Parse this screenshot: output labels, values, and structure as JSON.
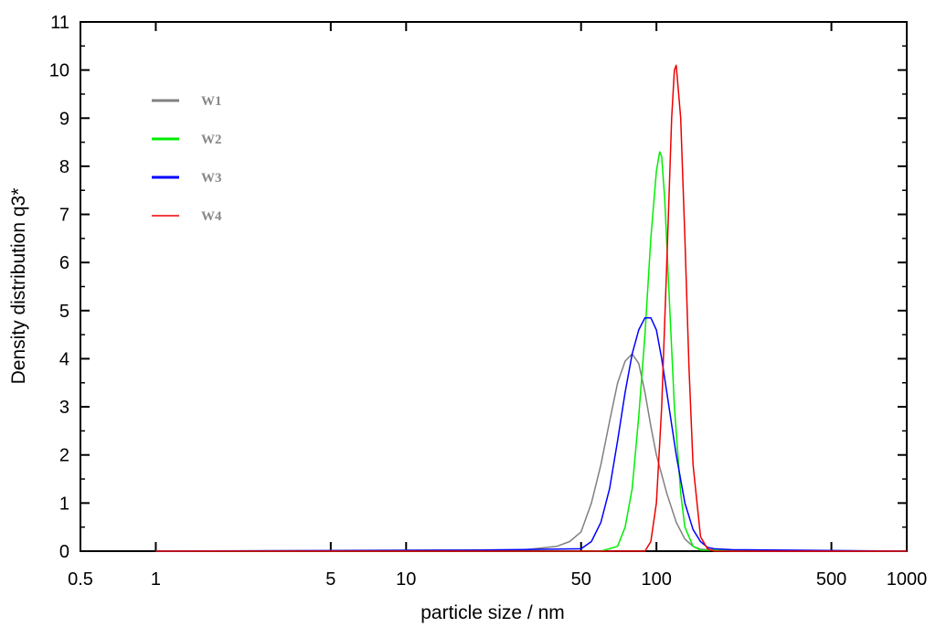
{
  "chart_data": {
    "type": "line",
    "xlabel": "particle size / nm",
    "ylabel": "Density distribution q3*",
    "x_scale": "log",
    "xlim": [
      0.5,
      1000
    ],
    "ylim": [
      0,
      11
    ],
    "x_ticks": [
      0.5,
      1,
      5,
      10,
      50,
      100,
      500,
      1000
    ],
    "x_tick_labels": [
      "0.5",
      "1",
      "5",
      "10",
      "50",
      "100",
      "500",
      "1000"
    ],
    "y_ticks": [
      0,
      1,
      2,
      3,
      4,
      5,
      6,
      7,
      8,
      9,
      10,
      11
    ],
    "y_tick_labels": [
      "0",
      "1",
      "2",
      "3",
      "4",
      "5",
      "6",
      "7",
      "8",
      "9",
      "10",
      "11"
    ],
    "grid": false,
    "legend": "top-left",
    "series": [
      {
        "name": "W1",
        "color": "#808080",
        "x": [
          1,
          30,
          40,
          45,
          50,
          55,
          60,
          65,
          70,
          75,
          80,
          85,
          90,
          95,
          100,
          110,
          120,
          130,
          140,
          150,
          200,
          1000
        ],
        "y": [
          0,
          0.03,
          0.1,
          0.2,
          0.4,
          1.0,
          1.8,
          2.7,
          3.5,
          3.95,
          4.1,
          3.9,
          3.3,
          2.6,
          2.0,
          1.2,
          0.6,
          0.25,
          0.1,
          0.04,
          0,
          0
        ]
      },
      {
        "name": "W2",
        "color": "#00ee00",
        "x": [
          1,
          60,
          70,
          75,
          80,
          85,
          90,
          95,
          100,
          103,
          105,
          108,
          112,
          118,
          125,
          130,
          140,
          150,
          1000
        ],
        "y": [
          0,
          0,
          0.1,
          0.5,
          1.3,
          2.8,
          4.5,
          6.5,
          7.9,
          8.3,
          8.2,
          7.3,
          5.5,
          3.0,
          1.2,
          0.5,
          0.1,
          0.02,
          0
        ]
      },
      {
        "name": "W3",
        "color": "#0000ff",
        "x": [
          1,
          20,
          50,
          55,
          60,
          65,
          70,
          75,
          80,
          85,
          90,
          95,
          100,
          105,
          110,
          120,
          130,
          140,
          150,
          160,
          170,
          200,
          1000
        ],
        "y": [
          0,
          0.02,
          0.05,
          0.2,
          0.6,
          1.3,
          2.3,
          3.3,
          4.1,
          4.6,
          4.85,
          4.85,
          4.6,
          4.0,
          3.3,
          2.0,
          1.0,
          0.45,
          0.2,
          0.08,
          0.05,
          0.03,
          0
        ]
      },
      {
        "name": "W4",
        "color": "#ee0000",
        "x": [
          1,
          90,
          95,
          100,
          105,
          110,
          115,
          118,
          120,
          125,
          130,
          135,
          140,
          150,
          160,
          170,
          200,
          1000
        ],
        "y": [
          0,
          0,
          0.2,
          1.0,
          3.0,
          6.0,
          9.0,
          10.0,
          10.1,
          9.0,
          6.5,
          3.8,
          1.8,
          0.3,
          0.05,
          0,
          0,
          0
        ]
      }
    ]
  }
}
